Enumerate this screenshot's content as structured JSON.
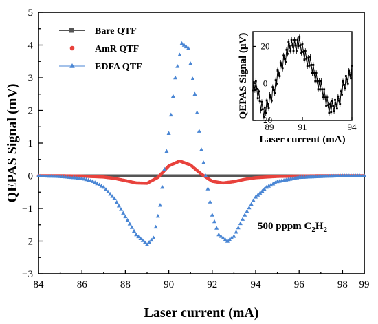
{
  "chart_data": [
    {
      "type": "scatter",
      "xlabel": "Laser current (mA)",
      "ylabel": "QEPAS Signal (mV)",
      "xlim": [
        84,
        99
      ],
      "ylim": [
        -3,
        5
      ],
      "xticks": [
        "84",
        "86",
        "88",
        "90",
        "92",
        "94",
        "96",
        "98",
        "99"
      ],
      "yticks": [
        "−3",
        "−2",
        "−1",
        "0",
        "1",
        "2",
        "3",
        "4",
        "5"
      ],
      "legend": "top-left",
      "annotation": {
        "text": "500 pppm C",
        "sub": "2",
        "tail": "H",
        "sub2": "2"
      },
      "series": [
        {
          "name": "Bare QTF",
          "marker": "square-line",
          "color": "#555555",
          "x": [
            84,
            99
          ],
          "y": [
            0,
            0
          ]
        },
        {
          "name": "AmR QTF",
          "marker": "circle",
          "color": "#e8423c",
          "x": [
            84,
            85,
            86,
            87,
            87.5,
            88,
            88.5,
            89,
            89.5,
            90,
            90.5,
            91,
            91.5,
            92,
            92.5,
            93,
            93.5,
            94,
            95,
            96,
            97,
            98,
            99
          ],
          "y": [
            0,
            0,
            -0.01,
            -0.04,
            -0.08,
            -0.15,
            -0.22,
            -0.23,
            -0.05,
            0.3,
            0.45,
            0.33,
            0.05,
            -0.17,
            -0.22,
            -0.18,
            -0.11,
            -0.06,
            -0.02,
            -0.01,
            0,
            0,
            0
          ]
        },
        {
          "name": "EDFA QTF",
          "marker": "triangle",
          "color": "#4a86d4",
          "x": [
            84,
            85,
            86,
            86.5,
            87,
            87.5,
            88,
            88.5,
            89,
            89.3,
            89.6,
            90,
            90.3,
            90.6,
            90.9,
            91.2,
            91.5,
            92,
            92.3,
            92.7,
            93,
            93.5,
            94,
            94.5,
            95,
            96,
            97,
            98,
            99
          ],
          "y": [
            0,
            -0.02,
            -0.08,
            -0.17,
            -0.35,
            -0.7,
            -1.25,
            -1.8,
            -2.1,
            -1.9,
            -0.9,
            1.3,
            3.0,
            4.05,
            3.9,
            2.5,
            0.8,
            -1.2,
            -1.8,
            -2.0,
            -1.85,
            -1.2,
            -0.65,
            -0.35,
            -0.18,
            -0.05,
            -0.02,
            0,
            0
          ]
        }
      ]
    },
    {
      "type": "line",
      "xlabel": "Laser current (mA)",
      "ylabel": "QEPAS Signal (μV)",
      "xlim": [
        88,
        94
      ],
      "ylim": [
        -20,
        28
      ],
      "xticks": [
        "89",
        "91",
        "94"
      ],
      "yticks": [
        "−20",
        "0",
        "20"
      ],
      "series": [
        {
          "name": "Bare QTF",
          "color": "#000000",
          "x": [
            88.0,
            88.25,
            88.5,
            88.75,
            89.0,
            89.25,
            89.5,
            89.75,
            90.0,
            90.25,
            90.5,
            90.75,
            91.0,
            91.25,
            91.5,
            91.75,
            92.0,
            92.25,
            92.5,
            92.75,
            93.0,
            93.25,
            93.5,
            93.75,
            94.0
          ],
          "y": [
            0,
            -4,
            -12,
            -15,
            -10,
            -3,
            3,
            10,
            16,
            20,
            21,
            22,
            18,
            14,
            10,
            5,
            0,
            -5,
            -10,
            -14,
            -12,
            -8,
            -2,
            3,
            8
          ]
        }
      ]
    }
  ]
}
